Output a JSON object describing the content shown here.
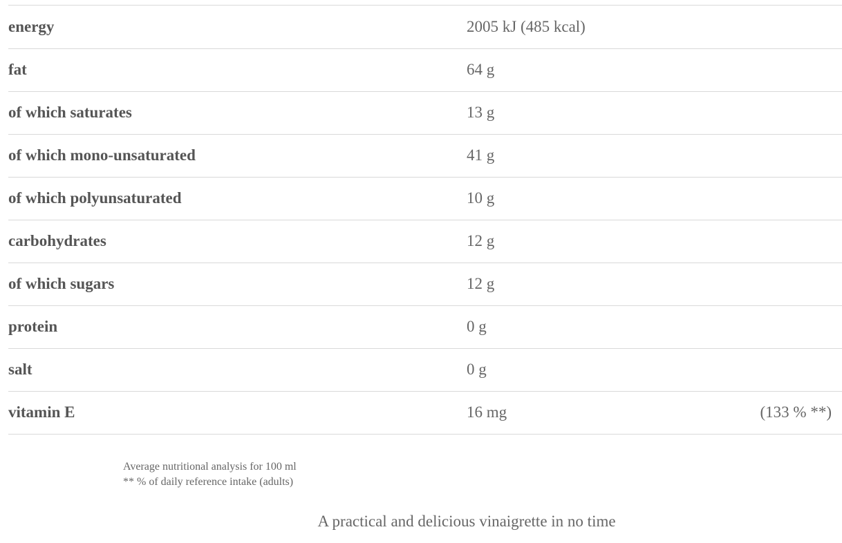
{
  "table": {
    "rows": [
      [
        "energy",
        "2005 kJ (485 kcal)"
      ],
      [
        "fat",
        "64 g"
      ],
      [
        "of which saturates",
        "13 g"
      ],
      [
        "of which mono-unsaturated",
        "41 g"
      ],
      [
        "of which polyunsaturated",
        "10 g"
      ],
      [
        "carbohydrates",
        "12 g"
      ],
      [
        "of which sugars",
        "12 g"
      ],
      [
        "protein",
        "0 g"
      ],
      [
        "salt",
        "0 g"
      ],
      [
        "vitamin E",
        "16 mg",
        "(133 % **)"
      ]
    ]
  },
  "footnotes": [
    "Average nutritional analysis for 100 ml",
    "** % of daily reference intake (adults)"
  ],
  "tagline": "A practical and delicious vinaigrette in no time"
}
